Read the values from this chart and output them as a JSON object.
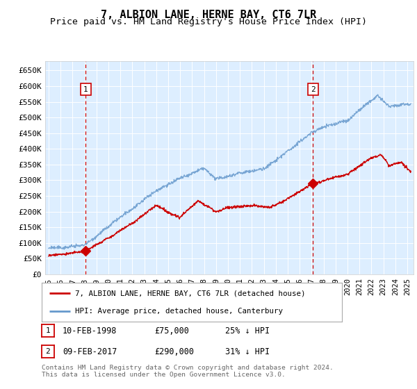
{
  "title": "7, ALBION LANE, HERNE BAY, CT6 7LR",
  "subtitle": "Price paid vs. HM Land Registry's House Price Index (HPI)",
  "ylabel_ticks": [
    "£0",
    "£50K",
    "£100K",
    "£150K",
    "£200K",
    "£250K",
    "£300K",
    "£350K",
    "£400K",
    "£450K",
    "£500K",
    "£550K",
    "£600K",
    "£650K"
  ],
  "ytick_values": [
    0,
    50000,
    100000,
    150000,
    200000,
    250000,
    300000,
    350000,
    400000,
    450000,
    500000,
    550000,
    600000,
    650000
  ],
  "ylim": [
    0,
    680000
  ],
  "xlim_start": 1994.7,
  "xlim_end": 2025.5,
  "background_color": "#ddeeff",
  "plot_bg_color": "#ddeeff",
  "hpi_line_color": "#6699cc",
  "price_line_color": "#cc0000",
  "vline_color": "#cc0000",
  "marker1_date": 1998.11,
  "marker1_price": 75000,
  "marker2_date": 2017.11,
  "marker2_price": 290000,
  "legend_label_red": "7, ALBION LANE, HERNE BAY, CT6 7LR (detached house)",
  "legend_label_blue": "HPI: Average price, detached house, Canterbury",
  "annotation1_label": "1",
  "annotation2_label": "2",
  "table_row1": [
    "1",
    "10-FEB-1998",
    "£75,000",
    "25% ↓ HPI"
  ],
  "table_row2": [
    "2",
    "09-FEB-2017",
    "£290,000",
    "31% ↓ HPI"
  ],
  "footer": "Contains HM Land Registry data © Crown copyright and database right 2024.\nThis data is licensed under the Open Government Licence v3.0.",
  "title_fontsize": 11,
  "subtitle_fontsize": 9.5,
  "tick_fontsize": 8,
  "xlabel_fontsize": 7.5
}
